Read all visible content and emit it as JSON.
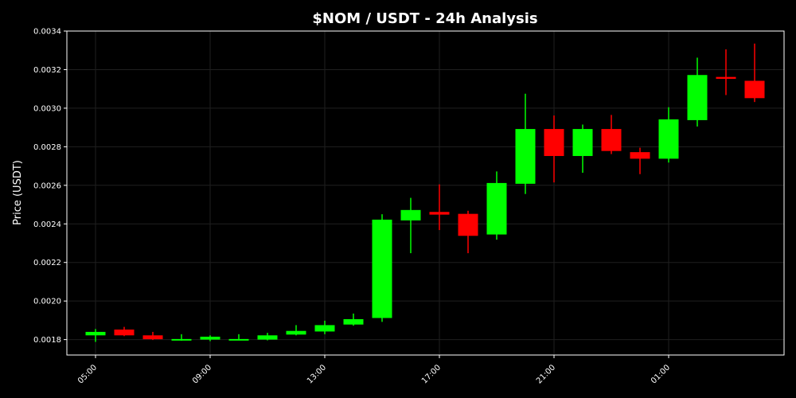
{
  "colors": {
    "background": "#000000",
    "axis": "#ffffff",
    "grid": "#1f1f1f",
    "up": "#00ff00",
    "down": "#ff0000",
    "text": "#ffffff"
  },
  "chart_data": {
    "type": "candlestick",
    "title": "$NOM / USDT - 24h Analysis",
    "xlabel": "",
    "ylabel": "Price (USDT)",
    "ylim": [
      0.00172,
      0.0034
    ],
    "yticks": [
      "0.0018",
      "0.0020",
      "0.0022",
      "0.0024",
      "0.0026",
      "0.0028",
      "0.0030",
      "0.0032",
      "0.0034"
    ],
    "xticks": [
      "05:00",
      "09:00",
      "13:00",
      "17:00",
      "21:00",
      "01:00"
    ],
    "grid": true,
    "candles": [
      {
        "time": "05:00",
        "open": 0.001822,
        "high": 0.001855,
        "low": 0.001788,
        "close": 0.00184
      },
      {
        "time": "06:00",
        "open": 0.001852,
        "high": 0.001866,
        "low": 0.001818,
        "close": 0.001822
      },
      {
        "time": "07:00",
        "open": 0.001822,
        "high": 0.00184,
        "low": 0.001798,
        "close": 0.001802
      },
      {
        "time": "08:00",
        "open": 0.0018,
        "high": 0.001828,
        "low": 0.001794,
        "close": 0.001803
      },
      {
        "time": "09:00",
        "open": 0.0018,
        "high": 0.001822,
        "low": 0.001792,
        "close": 0.001815
      },
      {
        "time": "10:00",
        "open": 0.0018,
        "high": 0.001828,
        "low": 0.001796,
        "close": 0.001803
      },
      {
        "time": "11:00",
        "open": 0.0018,
        "high": 0.001835,
        "low": 0.001796,
        "close": 0.001822
      },
      {
        "time": "12:00",
        "open": 0.001826,
        "high": 0.001875,
        "low": 0.001822,
        "close": 0.001845
      },
      {
        "time": "13:00",
        "open": 0.001842,
        "high": 0.001898,
        "low": 0.001828,
        "close": 0.001875
      },
      {
        "time": "14:00",
        "open": 0.001878,
        "high": 0.001935,
        "low": 0.001872,
        "close": 0.001906
      },
      {
        "time": "15:00",
        "open": 0.001912,
        "high": 0.00245,
        "low": 0.001892,
        "close": 0.002422
      },
      {
        "time": "16:00",
        "open": 0.002418,
        "high": 0.002535,
        "low": 0.002248,
        "close": 0.002472
      },
      {
        "time": "17:00",
        "open": 0.002462,
        "high": 0.002605,
        "low": 0.002368,
        "close": 0.002448
      },
      {
        "time": "18:00",
        "open": 0.002452,
        "high": 0.002468,
        "low": 0.002248,
        "close": 0.002338
      },
      {
        "time": "19:00",
        "open": 0.002345,
        "high": 0.002672,
        "low": 0.002318,
        "close": 0.002612
      },
      {
        "time": "20:00",
        "open": 0.002608,
        "high": 0.003075,
        "low": 0.002555,
        "close": 0.002892
      },
      {
        "time": "21:00",
        "open": 0.002892,
        "high": 0.002962,
        "low": 0.002615,
        "close": 0.002752
      },
      {
        "time": "22:00",
        "open": 0.002752,
        "high": 0.002915,
        "low": 0.002665,
        "close": 0.002892
      },
      {
        "time": "23:00",
        "open": 0.002892,
        "high": 0.002965,
        "low": 0.002762,
        "close": 0.002778
      },
      {
        "time": "00:00",
        "open": 0.002772,
        "high": 0.002795,
        "low": 0.002658,
        "close": 0.002738
      },
      {
        "time": "01:00",
        "open": 0.002738,
        "high": 0.003005,
        "low": 0.002718,
        "close": 0.002942
      },
      {
        "time": "02:00",
        "open": 0.002938,
        "high": 0.003262,
        "low": 0.002905,
        "close": 0.003172
      },
      {
        "time": "03:00",
        "open": 0.003162,
        "high": 0.003305,
        "low": 0.003068,
        "close": 0.003152
      },
      {
        "time": "04:00",
        "open": 0.003142,
        "high": 0.003335,
        "low": 0.003032,
        "close": 0.003052
      }
    ]
  }
}
